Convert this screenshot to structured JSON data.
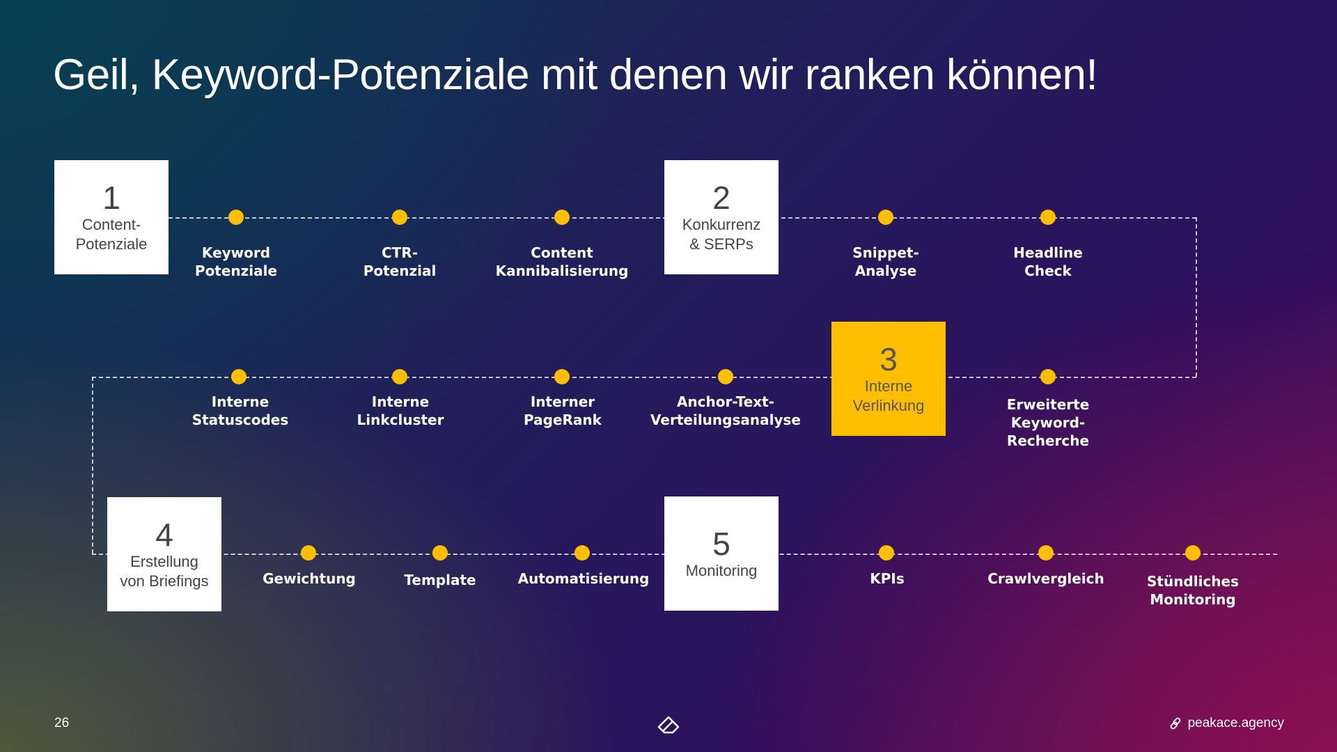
{
  "title": "Geil, Keyword-Potenziale mit denen wir ranken können!",
  "steps": [
    {
      "number": "1",
      "label": "Content-\nPotenziale"
    },
    {
      "number": "2",
      "label": "Konkurrenz\n& SERPs"
    },
    {
      "number": "3",
      "label": "Interne\nVerlinkung"
    },
    {
      "number": "4",
      "label": "Erstellung\nvon Briefings"
    },
    {
      "number": "5",
      "label": "Monitoring"
    }
  ],
  "milestones": {
    "row1": [
      "Keyword\nPotenziale",
      "CTR-\nPotenzial",
      "Content\nKannibalisierung",
      "Snippet-\nAnalyse",
      "Headline\nCheck"
    ],
    "row2": [
      "Interne\nStatuscodes",
      "Interne\nLinkcluster",
      "Interner\nPageRank",
      "Anchor-Text-\nVerteilungsanalyse",
      "Erweiterte\nKeyword-\nRecherche"
    ],
    "row3": [
      "Gewichtung",
      "Template",
      "Automatisierung",
      "KPIs",
      "Crawlvergleich",
      "Stündliches\nMonitoring"
    ]
  },
  "footer": {
    "page_number": "26",
    "link_text": "peakace.agency",
    "logo_icon": "peakace-logo-icon",
    "link_icon": "link-icon"
  },
  "colors": {
    "accent": "#ffbf00"
  }
}
